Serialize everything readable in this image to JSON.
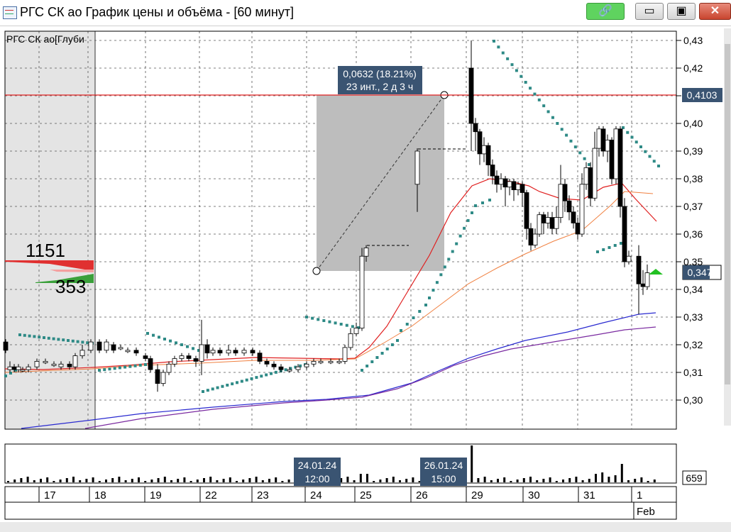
{
  "window": {
    "title": "РГС СК ао График цены и объёма - [60 минут]"
  },
  "chart_data": {
    "type": "candlestick",
    "legend_label": "РГС СК ао[Глуби",
    "y_ticks": [
      "0,43",
      "0,42",
      "0,41",
      "0,40",
      "0,39",
      "0,38",
      "0,37",
      "0,36",
      "0,35",
      "0,34",
      "0,33",
      "0,32",
      "0,31",
      "0,30"
    ],
    "price_line": {
      "value": "0,4103",
      "color": "#e02020"
    },
    "current_price": "0,347",
    "x_ticks": [
      "17",
      "18",
      "19",
      "22",
      "23",
      "24",
      "25",
      "26",
      "29",
      "30",
      "31",
      "1"
    ],
    "month_label": "Feb",
    "measure": {
      "line1": "0,0632 (18.21%)",
      "line2": "23 инт., 2 д 3 ч"
    },
    "orderbook": {
      "top": "1151",
      "bottom": "353"
    },
    "crosshair_labels": [
      {
        "date": "24.01.24",
        "time": "12:00"
      },
      {
        "date": "26.01.24",
        "time": "15:00"
      }
    ],
    "volume_value": "659",
    "colors": {
      "sar": "#2e8a86",
      "ma_fast": "#e02020",
      "ma_mid": "#f08040",
      "ma_blue": "#2a2ad0",
      "ma_purple": "#7a2aa0",
      "grid": "#555555"
    }
  }
}
